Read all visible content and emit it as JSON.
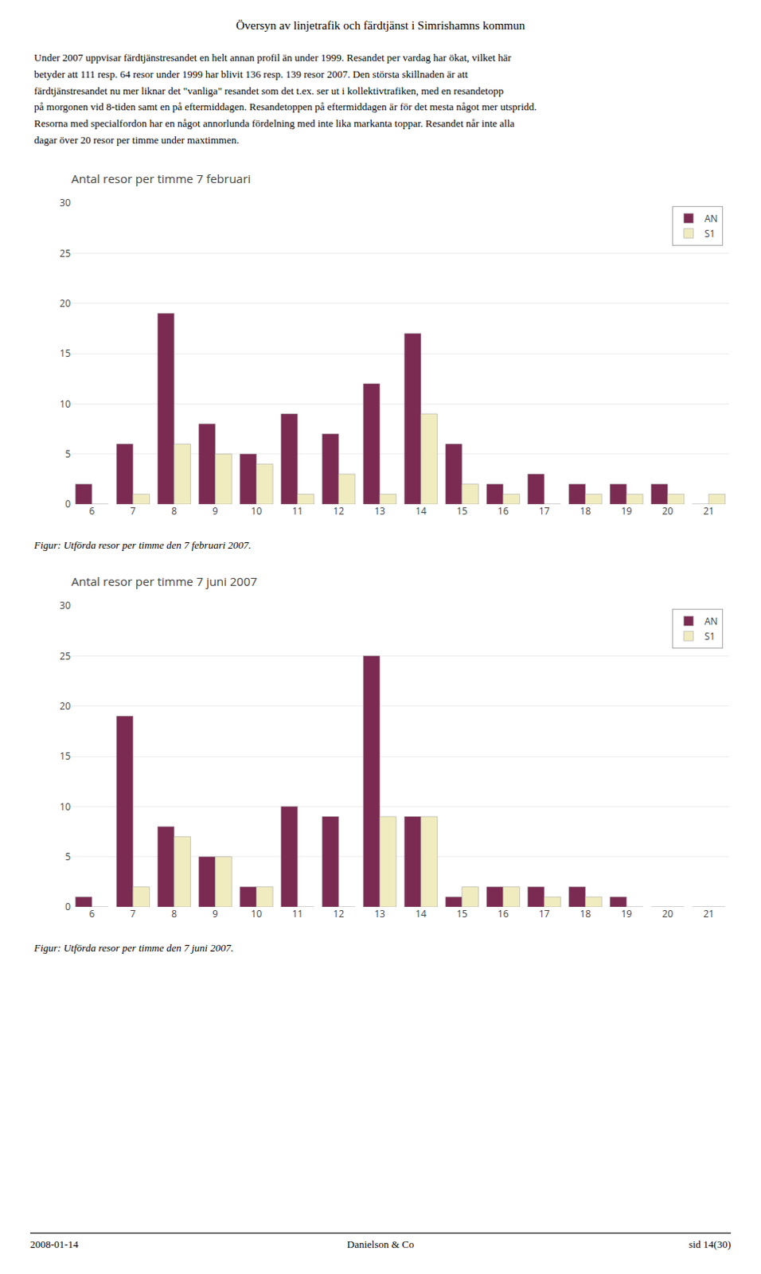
{
  "page_title": "Översyn av linjetrafik och färdtjänst i Simrishamns kommun",
  "body_lines": [
    "Under 2007 uppvisar färdtjänstresandet en helt annan profil än under 1999. Resandet per vardag har ökat, vilket här",
    "betyder att 111 resp. 64 resor under 1999 har blivit 136 resp. 139 resor 2007. Den största skillnaden är att",
    "färdtjänstresandet nu mer liknar det \"vanliga\" resandet som det t.ex. ser ut i kollektivtrafiken, med en resandetopp",
    "på morgonen vid 8-tiden samt en på eftermiddagen. Resandetoppen på eftermiddagen är för det mesta något mer utspridd.",
    "Resorna med specialfordon har en något annorlunda fördelning med inte lika markanta toppar. Resandet når inte alla",
    "dagar över 20 resor per timme under maxtimmen."
  ],
  "footer_left": "2008-01-14",
  "footer_center": "Danielson & Co",
  "footer_right": "sid 14(30)",
  "chart_data": [
    {
      "type": "bar",
      "title": "Antal resor per timme 7 februari",
      "caption": "Figur: Utförda resor per timme den 7 februari 2007.",
      "categories": [
        "6",
        "7",
        "8",
        "9",
        "10",
        "11",
        "12",
        "13",
        "14",
        "15",
        "16",
        "17",
        "18",
        "19",
        "20",
        "21"
      ],
      "series": [
        {
          "name": "AN",
          "color": "#7B2A52",
          "values": [
            2,
            6,
            19,
            8,
            5,
            9,
            7,
            12,
            17,
            6,
            2,
            3,
            2,
            2,
            2,
            0
          ]
        },
        {
          "name": "S1",
          "color": "#F0ECC0",
          "values": [
            0,
            1,
            6,
            5,
            4,
            1,
            3,
            1,
            9,
            2,
            1,
            0,
            1,
            1,
            1,
            1
          ]
        }
      ],
      "ylim": [
        0,
        30
      ],
      "yticks": [
        0,
        5,
        10,
        15,
        20,
        25,
        30
      ],
      "grid": true,
      "legend": "upper right"
    },
    {
      "type": "bar",
      "title": "Antal resor per timme 7 juni 2007",
      "caption": "Figur: Utförda resor per timme den 7 juni 2007.",
      "categories": [
        "6",
        "7",
        "8",
        "9",
        "10",
        "11",
        "12",
        "13",
        "14",
        "15",
        "16",
        "17",
        "18",
        "19",
        "20",
        "21"
      ],
      "series": [
        {
          "name": "AN",
          "color": "#7B2A52",
          "values": [
            1,
            19,
            8,
            5,
            2,
            10,
            9,
            25,
            9,
            1,
            2,
            2,
            2,
            1,
            0,
            0
          ]
        },
        {
          "name": "S1",
          "color": "#F0ECC0",
          "values": [
            0,
            2,
            7,
            5,
            2,
            0,
            0,
            9,
            9,
            2,
            2,
            1,
            1,
            0,
            0,
            0
          ]
        }
      ],
      "ylim": [
        0,
        30
      ],
      "yticks": [
        0,
        5,
        10,
        15,
        20,
        25,
        30
      ],
      "grid": true,
      "legend": "upper right"
    }
  ]
}
